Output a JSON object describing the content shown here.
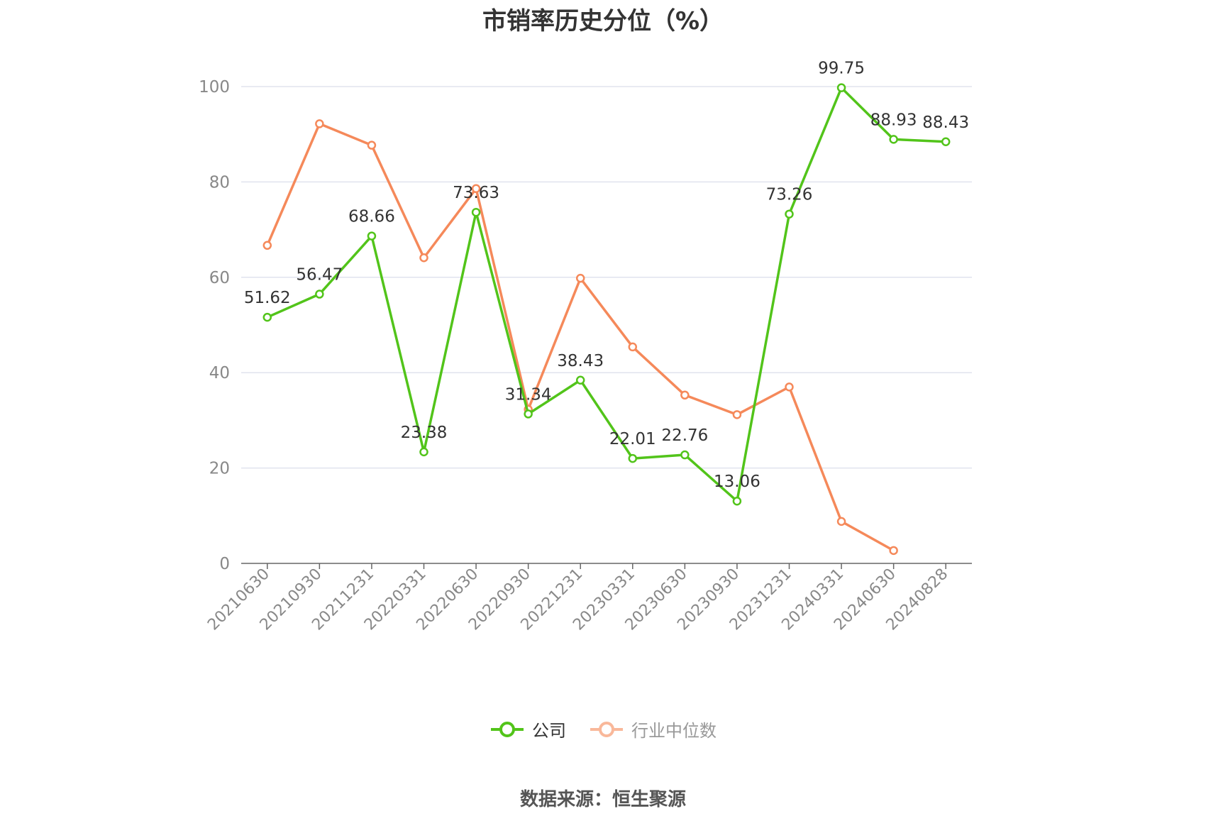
{
  "title": "市销率历史分位（%）",
  "source": "数据来源：恒生聚源",
  "legend": {
    "company": "公司",
    "industry": "行业中位数"
  },
  "colors": {
    "company": "#52c41a",
    "industry": "#f5895a",
    "industry_legend": "#f9b89a",
    "grid": "#e0e3ee",
    "axis": "#666666",
    "tick_text": "#888888",
    "label_text": "#333333"
  },
  "chart_data": {
    "type": "line",
    "title": "市销率历史分位（%）",
    "categories": [
      "20210630",
      "20210930",
      "20211231",
      "20220331",
      "20220630",
      "20220930",
      "20221231",
      "20230331",
      "20230630",
      "20230930",
      "20231231",
      "20240331",
      "20240630",
      "20240828"
    ],
    "ylim": [
      0,
      100
    ],
    "yticks": [
      0,
      20,
      40,
      60,
      80,
      100
    ],
    "grid": true,
    "legend_position": "bottom",
    "series": [
      {
        "name": "公司",
        "values": [
          51.62,
          56.47,
          68.66,
          23.38,
          73.63,
          31.34,
          38.43,
          22.01,
          22.76,
          13.06,
          73.26,
          99.75,
          88.93,
          88.43
        ],
        "labels": [
          "51.62",
          "56.47",
          "68.66",
          "23.38",
          "73.63",
          "31.34",
          "38.43",
          "22.01",
          "22.76",
          "13.06",
          "73.26",
          "99.75",
          "88.93",
          "88.43"
        ]
      },
      {
        "name": "行业中位数",
        "values": [
          66.7,
          92.2,
          87.7,
          64.1,
          78.6,
          32.3,
          59.8,
          45.4,
          35.3,
          31.2,
          37.0,
          8.8,
          2.7,
          null
        ]
      }
    ]
  }
}
